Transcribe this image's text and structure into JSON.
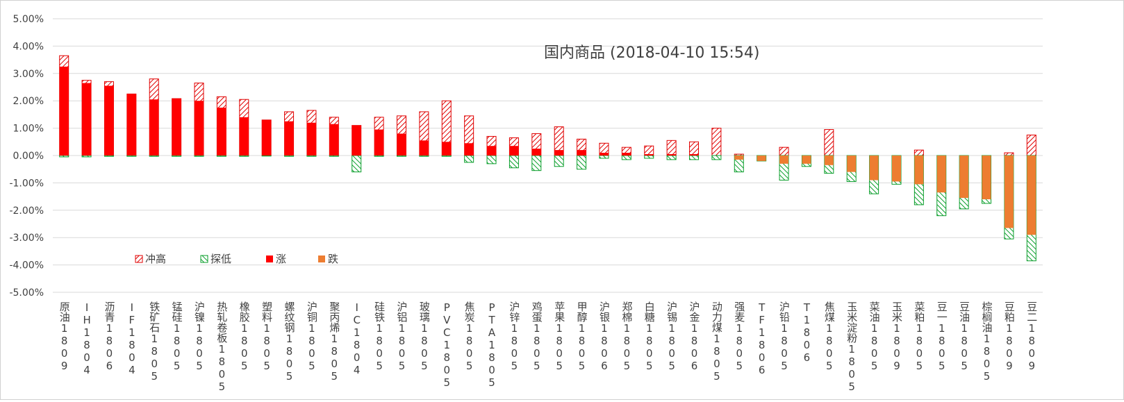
{
  "chart_data": {
    "type": "bar",
    "title": "国内商品 (2018-04-10 15:54)",
    "ylim": [
      -5,
      5
    ],
    "ytick_step": 1,
    "y_unit": "%",
    "grid": true,
    "legend_placement": "lower-left",
    "colors": {
      "high": "#e00000",
      "low": "#0a9e2b",
      "up": "#ff0000",
      "down": "#ed7d31"
    },
    "legend": [
      {
        "key": "high",
        "label": "冲高"
      },
      {
        "key": "low",
        "label": "探低"
      },
      {
        "key": "up",
        "label": "涨"
      },
      {
        "key": "down",
        "label": "跌"
      }
    ],
    "categories": [
      "原油1809",
      "IH1804",
      "沥青1806",
      "IF1804",
      "铁矿石1805",
      "锰硅1805",
      "沪镍1805",
      "热轧卷板1805",
      "橡胶1805",
      "塑料1805",
      "螺纹钢1805",
      "沪铜1805",
      "聚丙烯1805",
      "IC1804",
      "硅铁1805",
      "沪铝1805",
      "玻璃1805",
      "PVC1805",
      "焦炭1805",
      "PTA1805",
      "沪锌1805",
      "鸡蛋1805",
      "苹果1805",
      "甲醇1805",
      "沪银1806",
      "郑棉1805",
      "白糖1805",
      "沪锡1805",
      "沪金1806",
      "动力煤1805",
      "强麦1805",
      "TF1806",
      "沪铅1805",
      "T1806",
      "焦煤1805",
      "玉米淀粉1805",
      "菜油1805",
      "玉米1809",
      "菜粕1805",
      "豆一1805",
      "豆油1805",
      "棕榈油1805",
      "豆粕1809",
      "豆二1809"
    ],
    "series": [
      {
        "key": "change",
        "values": [
          3.25,
          2.65,
          2.55,
          2.25,
          2.05,
          2.08,
          2.0,
          1.75,
          1.4,
          1.3,
          1.25,
          1.2,
          1.15,
          1.1,
          0.95,
          0.8,
          0.55,
          0.5,
          0.45,
          0.35,
          0.35,
          0.25,
          0.2,
          0.2,
          0.1,
          0.1,
          0.05,
          0.05,
          0.05,
          0,
          -0.15,
          -0.2,
          -0.3,
          -0.3,
          -0.35,
          -0.6,
          -0.9,
          -0.95,
          -1.05,
          -1.35,
          -1.55,
          -1.6,
          -2.65,
          -2.9
        ]
      },
      {
        "key": "high",
        "values": [
          3.65,
          2.75,
          2.7,
          2.25,
          2.8,
          2.08,
          2.65,
          2.15,
          2.05,
          1.3,
          1.6,
          1.65,
          1.4,
          1.1,
          1.4,
          1.45,
          1.6,
          2.0,
          1.45,
          0.7,
          0.65,
          0.8,
          1.05,
          0.6,
          0.45,
          0.3,
          0.35,
          0.55,
          0.5,
          1.0,
          0.05,
          0,
          0.3,
          0,
          0.95,
          0,
          0,
          0,
          0.2,
          0,
          0,
          0,
          0.1,
          0.75
        ]
      },
      {
        "key": "low",
        "values": [
          -0.05,
          -0.05,
          -0.03,
          -0.03,
          -0.03,
          -0.03,
          -0.03,
          -0.03,
          -0.03,
          -0.02,
          -0.03,
          -0.03,
          -0.03,
          -0.6,
          -0.03,
          -0.03,
          -0.03,
          -0.03,
          -0.25,
          -0.3,
          -0.45,
          -0.55,
          -0.4,
          -0.5,
          -0.1,
          -0.15,
          -0.1,
          -0.15,
          -0.15,
          -0.15,
          -0.6,
          -0.2,
          -0.9,
          -0.4,
          -0.65,
          -0.95,
          -1.4,
          -1.05,
          -1.8,
          -2.2,
          -1.95,
          -1.75,
          -3.05,
          -3.85
        ]
      }
    ]
  }
}
